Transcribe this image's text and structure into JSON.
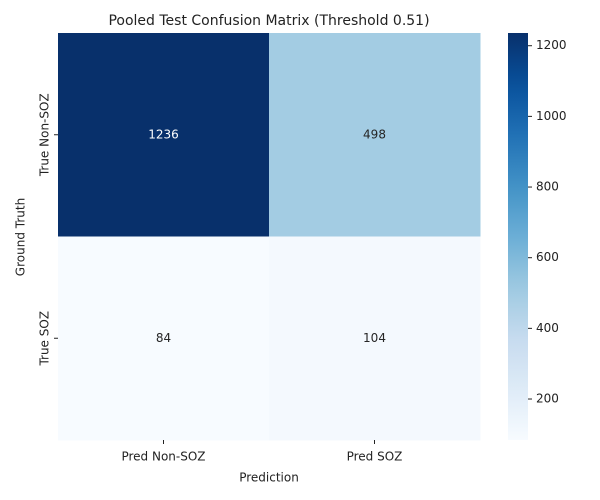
{
  "chart_data": {
    "type": "heatmap",
    "title": "Pooled Test Confusion Matrix (Threshold 0.51)",
    "x_label": "Prediction",
    "y_label": "Ground Truth",
    "x_categories": [
      "Pred Non-SOZ",
      "Pred SOZ"
    ],
    "y_categories": [
      "True Non-SOZ",
      "True SOZ"
    ],
    "values": [
      [
        1236,
        498
      ],
      [
        84,
        104
      ]
    ],
    "colormap": "Blues",
    "clim": [
      84,
      1236
    ],
    "cticks": [
      200,
      400,
      600,
      800,
      1000,
      1200
    ]
  }
}
